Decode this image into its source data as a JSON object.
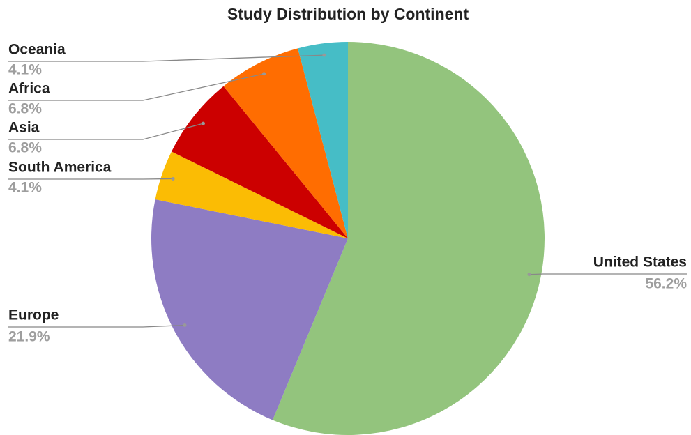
{
  "chart_data": {
    "type": "pie",
    "title": "Study Distribution by Continent",
    "categories": [
      "United States",
      "Europe",
      "South America",
      "Asia",
      "Africa",
      "Oceania"
    ],
    "values": [
      56.2,
      21.9,
      4.1,
      6.8,
      6.8,
      4.1
    ],
    "value_labels": [
      "56.2%",
      "21.9%",
      "4.1%",
      "6.8%",
      "6.8%",
      "4.1%"
    ],
    "colors": [
      "#93c47d",
      "#8e7cc3",
      "#fbbc04",
      "#cc0000",
      "#ff6d01",
      "#46bdc6"
    ]
  }
}
